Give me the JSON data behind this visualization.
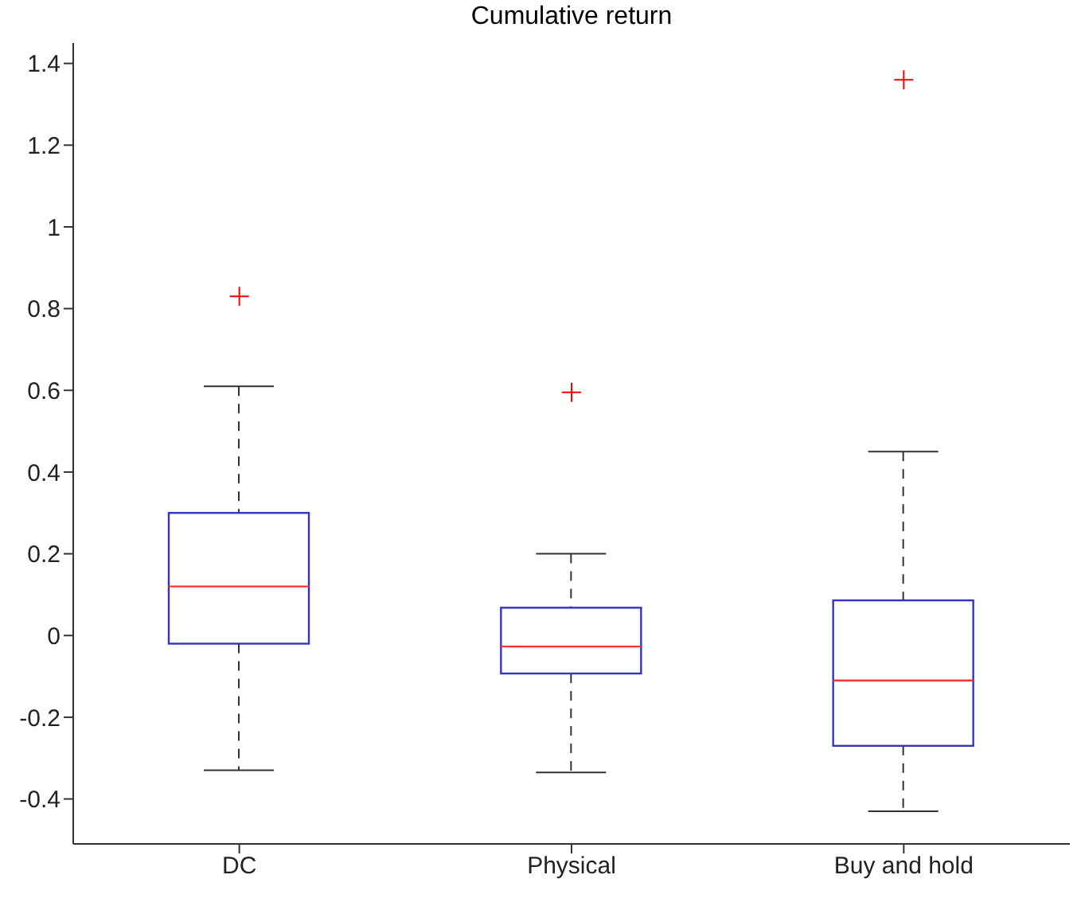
{
  "chart_data": {
    "type": "box",
    "title": "Cumulative return",
    "categories": [
      "DC",
      "Physical",
      "Buy and hold"
    ],
    "boxes": [
      {
        "low": -0.33,
        "q1": -0.02,
        "median": 0.12,
        "q3": 0.3,
        "high": 0.61,
        "outliers": [
          0.83
        ]
      },
      {
        "low": -0.335,
        "q1": -0.093,
        "median": -0.027,
        "q3": 0.068,
        "high": 0.2,
        "outliers": [
          0.595
        ]
      },
      {
        "low": -0.43,
        "q1": -0.27,
        "median": -0.11,
        "q3": 0.086,
        "high": 0.45,
        "outliers": [
          1.36
        ]
      }
    ],
    "ylim": [
      -0.51,
      1.45
    ],
    "yticks": [
      -0.4,
      -0.2,
      0,
      0.2,
      0.4,
      0.6,
      0.8,
      1,
      1.2,
      1.4
    ],
    "grid": false,
    "marker": "cross"
  }
}
